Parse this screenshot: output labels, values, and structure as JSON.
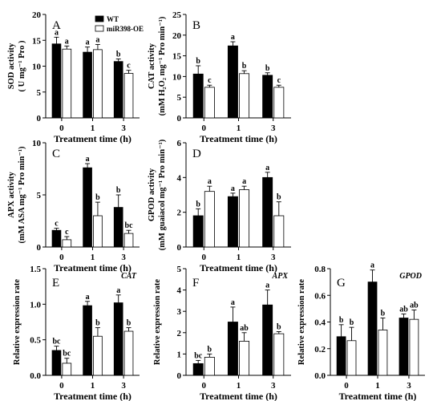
{
  "colors": {
    "wt": "#000000",
    "oe": "#ffffff",
    "stroke": "#000000"
  },
  "legend": {
    "wt": "WT",
    "oe": "miR398-OE"
  },
  "x_axis_title": "Treatment time (h)",
  "chart_data": [
    {
      "type": "bar",
      "panel": "A",
      "ylabel": [
        "SOD activity",
        "( U mg⁻¹ Pro )"
      ],
      "ylim": [
        0,
        20
      ],
      "yticks": [
        0,
        5,
        10,
        15,
        20
      ],
      "categories": [
        "0",
        "1",
        "3"
      ],
      "series": [
        {
          "name": "WT",
          "values": [
            14.3,
            12.7,
            10.9
          ],
          "errors": [
            1.3,
            1.0,
            0.5
          ],
          "letters": [
            "a",
            "a",
            "b"
          ]
        },
        {
          "name": "miR398-OE",
          "values": [
            13.3,
            13.2,
            8.6
          ],
          "errors": [
            0.6,
            1.0,
            0.6
          ],
          "letters": [
            "a",
            "a",
            "c"
          ]
        }
      ]
    },
    {
      "type": "bar",
      "panel": "B",
      "ylabel": [
        "CAT activity",
        "(mM H₂O₂ mg⁻¹ Pro min⁻¹)"
      ],
      "ylim": [
        0,
        25
      ],
      "yticks": [
        0,
        5,
        10,
        15,
        20,
        25
      ],
      "categories": [
        "0",
        "1",
        "3"
      ],
      "series": [
        {
          "name": "WT",
          "values": [
            10.6,
            17.4,
            10.3
          ],
          "errors": [
            2.0,
            1.0,
            0.6
          ],
          "letters": [
            "b",
            "a",
            "b"
          ]
        },
        {
          "name": "miR398-OE",
          "values": [
            7.4,
            10.7,
            7.4
          ],
          "errors": [
            0.5,
            0.7,
            0.5
          ],
          "letters": [
            "c",
            "b",
            "c"
          ]
        }
      ]
    },
    {
      "type": "bar",
      "panel": "C",
      "ylabel": [
        "APX activity",
        "(mM ASA mg⁻¹ Pro min⁻¹)"
      ],
      "ylim": [
        0,
        10
      ],
      "yticks": [
        0,
        5,
        10
      ],
      "categories": [
        "0",
        "1",
        "3"
      ],
      "series": [
        {
          "name": "WT",
          "values": [
            1.6,
            7.6,
            3.8
          ],
          "errors": [
            0.2,
            0.4,
            1.2
          ],
          "letters": [
            "c",
            "a",
            "b"
          ]
        },
        {
          "name": "miR398-OE",
          "values": [
            0.7,
            3.0,
            1.3
          ],
          "errors": [
            0.3,
            1.3,
            0.3
          ],
          "letters": [
            "c",
            "b",
            "bc"
          ]
        }
      ]
    },
    {
      "type": "bar",
      "panel": "D",
      "ylabel": [
        "GPOD activity",
        "(mM guaiacol mg⁻¹ Pro min⁻¹)"
      ],
      "ylim": [
        0,
        6
      ],
      "yticks": [
        0,
        2,
        4,
        6
      ],
      "categories": [
        "0",
        "1",
        "3"
      ],
      "series": [
        {
          "name": "WT",
          "values": [
            1.8,
            2.9,
            4.0
          ],
          "errors": [
            0.4,
            0.2,
            0.3
          ],
          "letters": [
            "b",
            "a",
            "a"
          ]
        },
        {
          "name": "miR398-OE",
          "values": [
            3.2,
            3.3,
            1.8
          ],
          "errors": [
            0.3,
            0.2,
            0.8
          ],
          "letters": [
            "a",
            "a",
            "b"
          ]
        }
      ]
    },
    {
      "type": "bar",
      "panel": "E",
      "gene": "CAT",
      "ylabel": [
        "Relative expression rate"
      ],
      "ylim": [
        0,
        1.5
      ],
      "yticks": [
        0.0,
        0.5,
        1.0,
        1.5
      ],
      "yticklabels": [
        "0.0",
        "0.5",
        "1.0",
        "1.5"
      ],
      "categories": [
        "0",
        "1",
        "3"
      ],
      "series": [
        {
          "name": "WT",
          "values": [
            0.35,
            0.98,
            1.02
          ],
          "errors": [
            0.06,
            0.06,
            0.11
          ],
          "letters": [
            "bc",
            "a",
            "a"
          ]
        },
        {
          "name": "miR398-OE",
          "values": [
            0.17,
            0.55,
            0.62
          ],
          "errors": [
            0.07,
            0.12,
            0.05
          ],
          "letters": [
            "bc",
            "b",
            "b"
          ]
        }
      ]
    },
    {
      "type": "bar",
      "panel": "F",
      "gene": "APX",
      "ylabel": [
        "Relative expression rate"
      ],
      "ylim": [
        0,
        5
      ],
      "yticks": [
        0,
        1,
        2,
        3,
        4,
        5
      ],
      "categories": [
        "0",
        "1",
        "3"
      ],
      "series": [
        {
          "name": "WT",
          "values": [
            0.55,
            2.5,
            3.3
          ],
          "errors": [
            0.15,
            0.7,
            0.7
          ],
          "letters": [
            "bc",
            "a",
            "a"
          ]
        },
        {
          "name": "miR398-OE",
          "values": [
            0.85,
            1.6,
            1.95
          ],
          "errors": [
            0.15,
            0.4,
            0.1
          ],
          "letters": [
            "b",
            "ab",
            "b"
          ]
        }
      ]
    },
    {
      "type": "bar",
      "panel": "G",
      "gene": "GPOD",
      "ylabel": [
        "Relative expression rate"
      ],
      "ylim": [
        0,
        0.8
      ],
      "yticks": [
        0.0,
        0.2,
        0.4,
        0.6,
        0.8
      ],
      "yticklabels": [
        "0.0",
        "0.2",
        "0.4",
        "0.6",
        "0.8"
      ],
      "categories": [
        "0",
        "1",
        "3"
      ],
      "series": [
        {
          "name": "WT",
          "values": [
            0.29,
            0.7,
            0.43
          ],
          "errors": [
            0.09,
            0.09,
            0.03
          ],
          "letters": [
            "b",
            "a",
            "ab"
          ]
        },
        {
          "name": "miR398-OE",
          "values": [
            0.26,
            0.34,
            0.42
          ],
          "errors": [
            0.1,
            0.09,
            0.07
          ],
          "letters": [
            "b",
            "b",
            "ab"
          ]
        }
      ]
    }
  ]
}
